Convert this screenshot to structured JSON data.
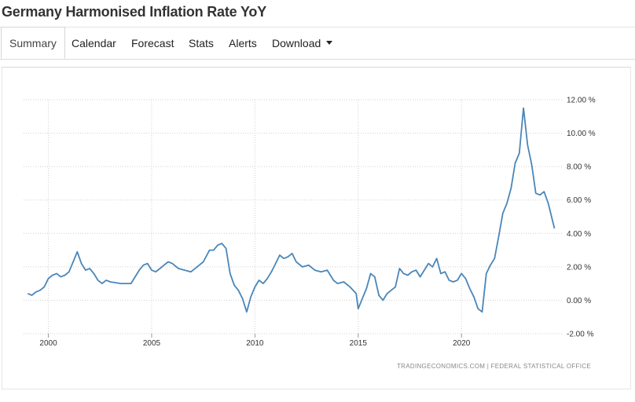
{
  "page": {
    "title": "Germany Harmonised Inflation Rate YoY"
  },
  "tabs": [
    {
      "label": "Summary",
      "active": true
    },
    {
      "label": "Calendar",
      "active": false
    },
    {
      "label": "Forecast",
      "active": false
    },
    {
      "label": "Stats",
      "active": false
    },
    {
      "label": "Alerts",
      "active": false
    },
    {
      "label": "Download",
      "active": false,
      "dropdown": true
    }
  ],
  "colors": {
    "line": "#4a86b8",
    "grid": "#d0d0d0"
  },
  "chart_data": {
    "type": "line",
    "title": "",
    "xlabel": "",
    "ylabel": "",
    "source": "TRADINGECONOMICS.COM  |  FEDERAL STATISTICAL OFFICE",
    "y_tick_labels": [
      "12.00 %",
      "10.00 %",
      "8.00 %",
      "6.00 %",
      "4.00 %",
      "2.00 %",
      "0.00 %",
      "-2.00 %"
    ],
    "y_tick_values": [
      12,
      10,
      8,
      6,
      4,
      2,
      0,
      -2
    ],
    "x_tick_labels": [
      "2000",
      "2005",
      "2010",
      "2015",
      "2020"
    ],
    "x_tick_values": [
      2000,
      2005,
      2010,
      2015,
      2020
    ],
    "xlim": [
      1998.8,
      2024.9
    ],
    "ylim": [
      -2,
      12
    ],
    "grid": true,
    "legend": "none",
    "series": [
      {
        "x": [
          1999.0,
          1999.2,
          1999.4,
          1999.6,
          1999.8,
          2000.0,
          2000.2,
          2000.4,
          2000.6,
          2000.8,
          2001.0,
          2001.2,
          2001.4,
          2001.6,
          2001.8,
          2002.0,
          2002.2,
          2002.4,
          2002.6,
          2002.8,
          2003.0,
          2003.5,
          2004.0,
          2004.2,
          2004.4,
          2004.6,
          2004.8,
          2005.0,
          2005.2,
          2005.4,
          2005.6,
          2005.8,
          2006.0,
          2006.3,
          2006.6,
          2006.9,
          2007.2,
          2007.5,
          2007.8,
          2008.0,
          2008.2,
          2008.4,
          2008.6,
          2008.8,
          2009.0,
          2009.2,
          2009.4,
          2009.6,
          2009.8,
          2010.0,
          2010.2,
          2010.4,
          2010.6,
          2010.8,
          2011.0,
          2011.2,
          2011.4,
          2011.6,
          2011.8,
          2012.0,
          2012.3,
          2012.6,
          2012.9,
          2013.2,
          2013.5,
          2013.8,
          2014.0,
          2014.3,
          2014.6,
          2014.9,
          2015.0,
          2015.2,
          2015.4,
          2015.6,
          2015.8,
          2016.0,
          2016.2,
          2016.4,
          2016.6,
          2016.8,
          2017.0,
          2017.2,
          2017.4,
          2017.6,
          2017.8,
          2018.0,
          2018.2,
          2018.4,
          2018.6,
          2018.8,
          2019.0,
          2019.2,
          2019.4,
          2019.6,
          2019.8,
          2020.0,
          2020.2,
          2020.4,
          2020.6,
          2020.8,
          2021.0,
          2021.2,
          2021.4,
          2021.6,
          2021.8,
          2022.0,
          2022.2,
          2022.4,
          2022.6,
          2022.8,
          2023.0,
          2023.2,
          2023.4,
          2023.6,
          2023.8,
          2024.0,
          2024.2,
          2024.5
        ],
        "y": [
          0.4,
          0.3,
          0.5,
          0.6,
          0.8,
          1.3,
          1.5,
          1.6,
          1.4,
          1.5,
          1.7,
          2.3,
          2.9,
          2.2,
          1.8,
          1.9,
          1.6,
          1.2,
          1.0,
          1.2,
          1.1,
          1.0,
          1.0,
          1.4,
          1.8,
          2.1,
          2.2,
          1.8,
          1.7,
          1.9,
          2.1,
          2.3,
          2.2,
          1.9,
          1.8,
          1.7,
          2.0,
          2.3,
          3.0,
          3.0,
          3.3,
          3.4,
          3.1,
          1.6,
          0.9,
          0.6,
          0.1,
          -0.7,
          0.2,
          0.8,
          1.2,
          1.0,
          1.3,
          1.7,
          2.2,
          2.7,
          2.5,
          2.6,
          2.8,
          2.3,
          2.0,
          2.1,
          1.8,
          1.7,
          1.8,
          1.2,
          1.0,
          1.1,
          0.8,
          0.4,
          -0.5,
          0.1,
          0.7,
          1.6,
          1.4,
          0.3,
          0.0,
          0.4,
          0.6,
          0.8,
          1.9,
          1.6,
          1.5,
          1.7,
          1.8,
          1.4,
          1.8,
          2.2,
          2.0,
          2.5,
          1.6,
          1.7,
          1.2,
          1.1,
          1.2,
          1.6,
          1.3,
          0.7,
          0.2,
          -0.5,
          -0.7,
          1.6,
          2.1,
          2.5,
          3.8,
          5.2,
          5.8,
          6.7,
          8.2,
          8.8,
          11.5,
          9.3,
          8.1,
          6.4,
          6.3,
          6.5,
          5.8,
          4.3
        ]
      }
    ]
  }
}
